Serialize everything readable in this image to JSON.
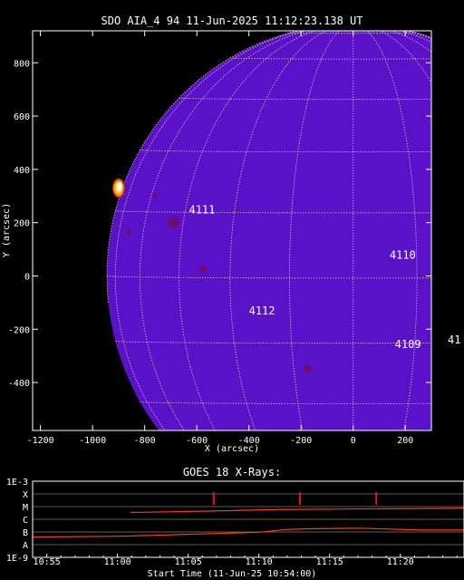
{
  "chart_data": [
    {
      "type": "image",
      "title": "SDO AIA_4 94 11-Jun-2025 11:12:23.138 UT",
      "xlabel": "X (arcsec)",
      "ylabel": "Y (arcsec)",
      "xlim": [
        -1230,
        300
      ],
      "ylim": [
        -580,
        920
      ],
      "x_ticks": [
        -1200,
        -1000,
        -800,
        -600,
        -400,
        -200,
        0,
        200
      ],
      "y_ticks": [
        -400,
        -200,
        0,
        200,
        400,
        600,
        800
      ],
      "solar_radius_arcsec": 945,
      "grid": true,
      "colors": {
        "disk": "#5a12c9",
        "grid": "#f2e6b0",
        "flare": "#ffd84a",
        "flare_core": "#fffbe6"
      },
      "flare_position": [
        -900,
        330
      ],
      "active_regions": [
        {
          "label": "4111",
          "x": -580,
          "y": 235
        },
        {
          "label": "4110",
          "x": 190,
          "y": 65
        },
        {
          "label": "4112",
          "x": -350,
          "y": -145
        },
        {
          "label": "4109",
          "x": 210,
          "y": -270
        },
        {
          "label": "41",
          "x": 390,
          "y": -240
        }
      ]
    },
    {
      "type": "line",
      "title": "GOES 18 X-Rays:",
      "xlabel": "Start Time (11-Jun-25 10:54:00)",
      "x_tick_labels": [
        "10:55",
        "11:00",
        "11:05",
        "11:10",
        "11:15",
        "11:20"
      ],
      "x_tick_minutes": [
        1,
        6,
        11,
        16,
        21,
        26
      ],
      "xlim_minutes": [
        0,
        30.5
      ],
      "y_tick_labels": [
        "1E-3",
        "X",
        "M",
        "C",
        "B",
        "A",
        "1E-9"
      ],
      "levels": [
        -3,
        -4,
        -5,
        -6,
        -7,
        -8,
        -9
      ],
      "ylim_log10": [
        -9,
        -3
      ],
      "colors": {
        "series": "#ff3b1f",
        "level_lines": "#f0e68c",
        "markers": "#e8141a"
      },
      "series": [
        {
          "x_minutes": [
            6.9,
            7.8,
            14,
            16.5,
            18,
            28,
            30.5
          ],
          "log10_flux": [
            -5.45,
            -5.45,
            -5.32,
            -5.25,
            -5.22,
            -5.15,
            -5.12
          ]
        },
        {
          "x_minutes": [
            0,
            6.5,
            16,
            18,
            19.5,
            23,
            27.5,
            30.5
          ],
          "log10_flux": [
            -7.4,
            -7.33,
            -7.02,
            -6.8,
            -6.75,
            -6.7,
            -6.85,
            -6.85
          ]
        }
      ],
      "event_markers_minutes": [
        12.8,
        18.9,
        24.3
      ]
    }
  ]
}
